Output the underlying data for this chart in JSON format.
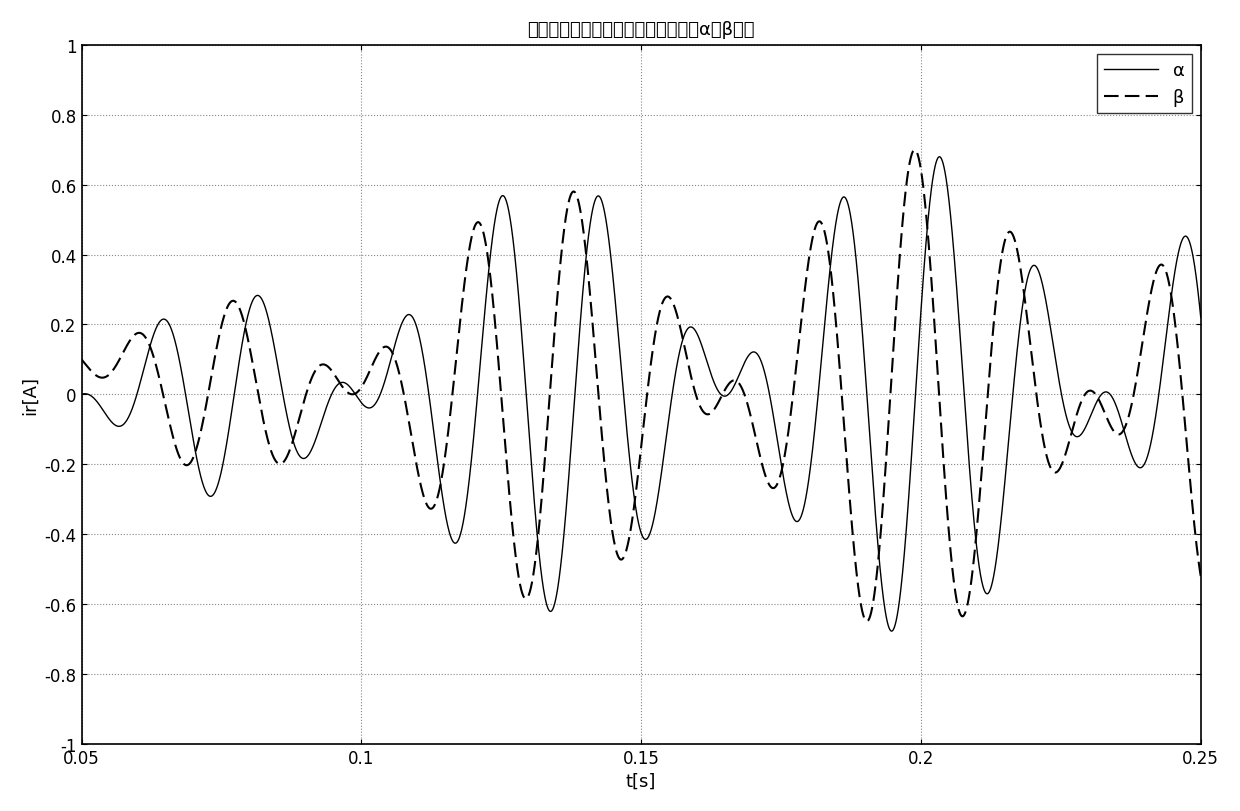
{
  "title": "包含正序分量、负序分量的转子电流α、β分量",
  "xlabel": "t[s]",
  "ylabel": "ir[A]",
  "xlim": [
    0.05,
    0.25
  ],
  "ylim": [
    -1,
    1
  ],
  "xticks": [
    0.05,
    0.1,
    0.15,
    0.2,
    0.25
  ],
  "yticks": [
    -1,
    -0.8,
    -0.6,
    -0.4,
    -0.2,
    0,
    0.2,
    0.4,
    0.6,
    0.8,
    1
  ],
  "legend_alpha": "α",
  "legend_beta": "β",
  "alpha_color": "#000000",
  "beta_color": "#000000",
  "grid_color": "#888888",
  "background_color": "#ffffff",
  "title_fontsize": 13,
  "label_fontsize": 13,
  "tick_fontsize": 12,
  "legend_fontsize": 13
}
